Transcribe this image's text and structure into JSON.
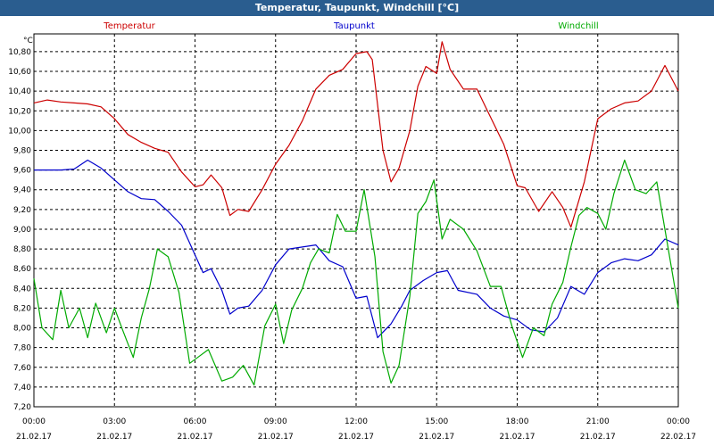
{
  "window": {
    "title": "Temperatur, Taupunkt, Windchill [°C]"
  },
  "chart_data": {
    "type": "line",
    "title": "Temperatur, Taupunkt, Windchill [°C]",
    "ylabel": "°C",
    "ylim": [
      7.2,
      10.98
    ],
    "yticks": [
      "10,80",
      "10,60",
      "10,40",
      "10,20",
      "10,00",
      "9,80",
      "9,60",
      "9,40",
      "9,20",
      "9,00",
      "8,80",
      "8,60",
      "8,40",
      "8,20",
      "8,00",
      "7,80",
      "7,60",
      "7,40",
      "7,20"
    ],
    "xlim": [
      0,
      24
    ],
    "xticks": [
      {
        "time": "00:00",
        "date": "21.02.17"
      },
      {
        "time": "03:00",
        "date": "21.02.17"
      },
      {
        "time": "06:00",
        "date": "21.02.17"
      },
      {
        "time": "09:00",
        "date": "21.02.17"
      },
      {
        "time": "12:00",
        "date": "21.02.17"
      },
      {
        "time": "15:00",
        "date": "21.02.17"
      },
      {
        "time": "18:00",
        "date": "21.02.17"
      },
      {
        "time": "21:00",
        "date": "21.02.17"
      },
      {
        "time": "00:00",
        "date": "22.02.17"
      }
    ],
    "grid": true,
    "legend_position": "top",
    "series": [
      {
        "name": "Temperatur",
        "color": "#cc0000",
        "points": [
          [
            0,
            10.28
          ],
          [
            0.5,
            10.31
          ],
          [
            1,
            10.29
          ],
          [
            1.5,
            10.28
          ],
          [
            2,
            10.27
          ],
          [
            2.5,
            10.24
          ],
          [
            3,
            10.12
          ],
          [
            3.5,
            9.96
          ],
          [
            4,
            9.88
          ],
          [
            4.5,
            9.82
          ],
          [
            5,
            9.78
          ],
          [
            5.5,
            9.58
          ],
          [
            6,
            9.43
          ],
          [
            6.3,
            9.45
          ],
          [
            6.6,
            9.55
          ],
          [
            7,
            9.42
          ],
          [
            7.3,
            9.14
          ],
          [
            7.6,
            9.2
          ],
          [
            8,
            9.18
          ],
          [
            8.5,
            9.4
          ],
          [
            9,
            9.66
          ],
          [
            9.5,
            9.85
          ],
          [
            10,
            10.1
          ],
          [
            10.5,
            10.42
          ],
          [
            11,
            10.56
          ],
          [
            11.5,
            10.62
          ],
          [
            12,
            10.78
          ],
          [
            12.4,
            10.8
          ],
          [
            12.6,
            10.72
          ],
          [
            13,
            9.8
          ],
          [
            13.3,
            9.48
          ],
          [
            13.6,
            9.62
          ],
          [
            14,
            10.0
          ],
          [
            14.3,
            10.45
          ],
          [
            14.6,
            10.65
          ],
          [
            15,
            10.58
          ],
          [
            15.2,
            10.9
          ],
          [
            15.5,
            10.62
          ],
          [
            16,
            10.42
          ],
          [
            16.5,
            10.42
          ],
          [
            17,
            10.14
          ],
          [
            17.5,
            9.86
          ],
          [
            18,
            9.44
          ],
          [
            18.3,
            9.42
          ],
          [
            18.8,
            9.18
          ],
          [
            19.3,
            9.38
          ],
          [
            19.7,
            9.22
          ],
          [
            20,
            9.02
          ],
          [
            20.5,
            9.48
          ],
          [
            21,
            10.12
          ],
          [
            21.5,
            10.22
          ],
          [
            22,
            10.28
          ],
          [
            22.5,
            10.3
          ],
          [
            23,
            10.4
          ],
          [
            23.5,
            10.66
          ],
          [
            24,
            10.4
          ]
        ]
      },
      {
        "name": "Taupunkt",
        "color": "#0000cc",
        "points": [
          [
            0,
            9.6
          ],
          [
            1,
            9.6
          ],
          [
            1.5,
            9.61
          ],
          [
            2,
            9.7
          ],
          [
            2.5,
            9.62
          ],
          [
            3,
            9.5
          ],
          [
            3.5,
            9.38
          ],
          [
            4,
            9.31
          ],
          [
            4.5,
            9.3
          ],
          [
            5,
            9.18
          ],
          [
            5.5,
            9.04
          ],
          [
            6,
            8.74
          ],
          [
            6.3,
            8.56
          ],
          [
            6.6,
            8.6
          ],
          [
            7,
            8.38
          ],
          [
            7.3,
            8.14
          ],
          [
            7.6,
            8.2
          ],
          [
            8,
            8.22
          ],
          [
            8.5,
            8.38
          ],
          [
            9,
            8.64
          ],
          [
            9.5,
            8.8
          ],
          [
            10,
            8.82
          ],
          [
            10.5,
            8.84
          ],
          [
            11,
            8.68
          ],
          [
            11.5,
            8.62
          ],
          [
            12,
            8.3
          ],
          [
            12.4,
            8.32
          ],
          [
            12.8,
            7.9
          ],
          [
            13.3,
            8.04
          ],
          [
            13.7,
            8.22
          ],
          [
            14,
            8.38
          ],
          [
            14.5,
            8.48
          ],
          [
            15,
            8.56
          ],
          [
            15.4,
            8.58
          ],
          [
            15.8,
            8.38
          ],
          [
            16.5,
            8.34
          ],
          [
            17,
            8.2
          ],
          [
            17.5,
            8.12
          ],
          [
            18,
            8.08
          ],
          [
            18.5,
            7.98
          ],
          [
            19,
            7.96
          ],
          [
            19.5,
            8.1
          ],
          [
            20,
            8.42
          ],
          [
            20.5,
            8.34
          ],
          [
            21,
            8.56
          ],
          [
            21.5,
            8.66
          ],
          [
            22,
            8.7
          ],
          [
            22.5,
            8.68
          ],
          [
            23,
            8.74
          ],
          [
            23.5,
            8.9
          ],
          [
            24,
            8.84
          ]
        ]
      },
      {
        "name": "Windchill",
        "color": "#00aa00",
        "points": [
          [
            0,
            8.5
          ],
          [
            0.3,
            8.0
          ],
          [
            0.7,
            7.88
          ],
          [
            1,
            8.38
          ],
          [
            1.3,
            8.0
          ],
          [
            1.7,
            8.2
          ],
          [
            2,
            7.9
          ],
          [
            2.3,
            8.25
          ],
          [
            2.7,
            7.95
          ],
          [
            3,
            8.2
          ],
          [
            3.3,
            7.98
          ],
          [
            3.7,
            7.7
          ],
          [
            4,
            8.1
          ],
          [
            4.3,
            8.4
          ],
          [
            4.6,
            8.8
          ],
          [
            5,
            8.72
          ],
          [
            5.4,
            8.36
          ],
          [
            5.8,
            7.64
          ],
          [
            6.1,
            7.7
          ],
          [
            6.5,
            7.78
          ],
          [
            7,
            7.46
          ],
          [
            7.4,
            7.5
          ],
          [
            7.8,
            7.62
          ],
          [
            8.2,
            7.42
          ],
          [
            8.6,
            8.02
          ],
          [
            9,
            8.24
          ],
          [
            9.3,
            7.84
          ],
          [
            9.6,
            8.18
          ],
          [
            10,
            8.4
          ],
          [
            10.3,
            8.66
          ],
          [
            10.6,
            8.8
          ],
          [
            11,
            8.76
          ],
          [
            11.3,
            9.15
          ],
          [
            11.6,
            8.98
          ],
          [
            12,
            8.98
          ],
          [
            12.3,
            9.4
          ],
          [
            12.7,
            8.72
          ],
          [
            13,
            7.76
          ],
          [
            13.3,
            7.44
          ],
          [
            13.6,
            7.62
          ],
          [
            14,
            8.32
          ],
          [
            14.3,
            9.16
          ],
          [
            14.6,
            9.28
          ],
          [
            14.9,
            9.5
          ],
          [
            15.2,
            8.9
          ],
          [
            15.5,
            9.1
          ],
          [
            16,
            9.0
          ],
          [
            16.5,
            8.78
          ],
          [
            17,
            8.42
          ],
          [
            17.4,
            8.42
          ],
          [
            17.8,
            8.02
          ],
          [
            18.2,
            7.7
          ],
          [
            18.6,
            8.0
          ],
          [
            19,
            7.92
          ],
          [
            19.3,
            8.24
          ],
          [
            19.7,
            8.46
          ],
          [
            20,
            8.82
          ],
          [
            20.3,
            9.14
          ],
          [
            20.6,
            9.22
          ],
          [
            21,
            9.16
          ],
          [
            21.3,
            9.0
          ],
          [
            21.6,
            9.36
          ],
          [
            22,
            9.7
          ],
          [
            22.4,
            9.4
          ],
          [
            22.8,
            9.36
          ],
          [
            23.2,
            9.48
          ],
          [
            23.6,
            8.84
          ],
          [
            24,
            8.2
          ]
        ]
      }
    ]
  }
}
